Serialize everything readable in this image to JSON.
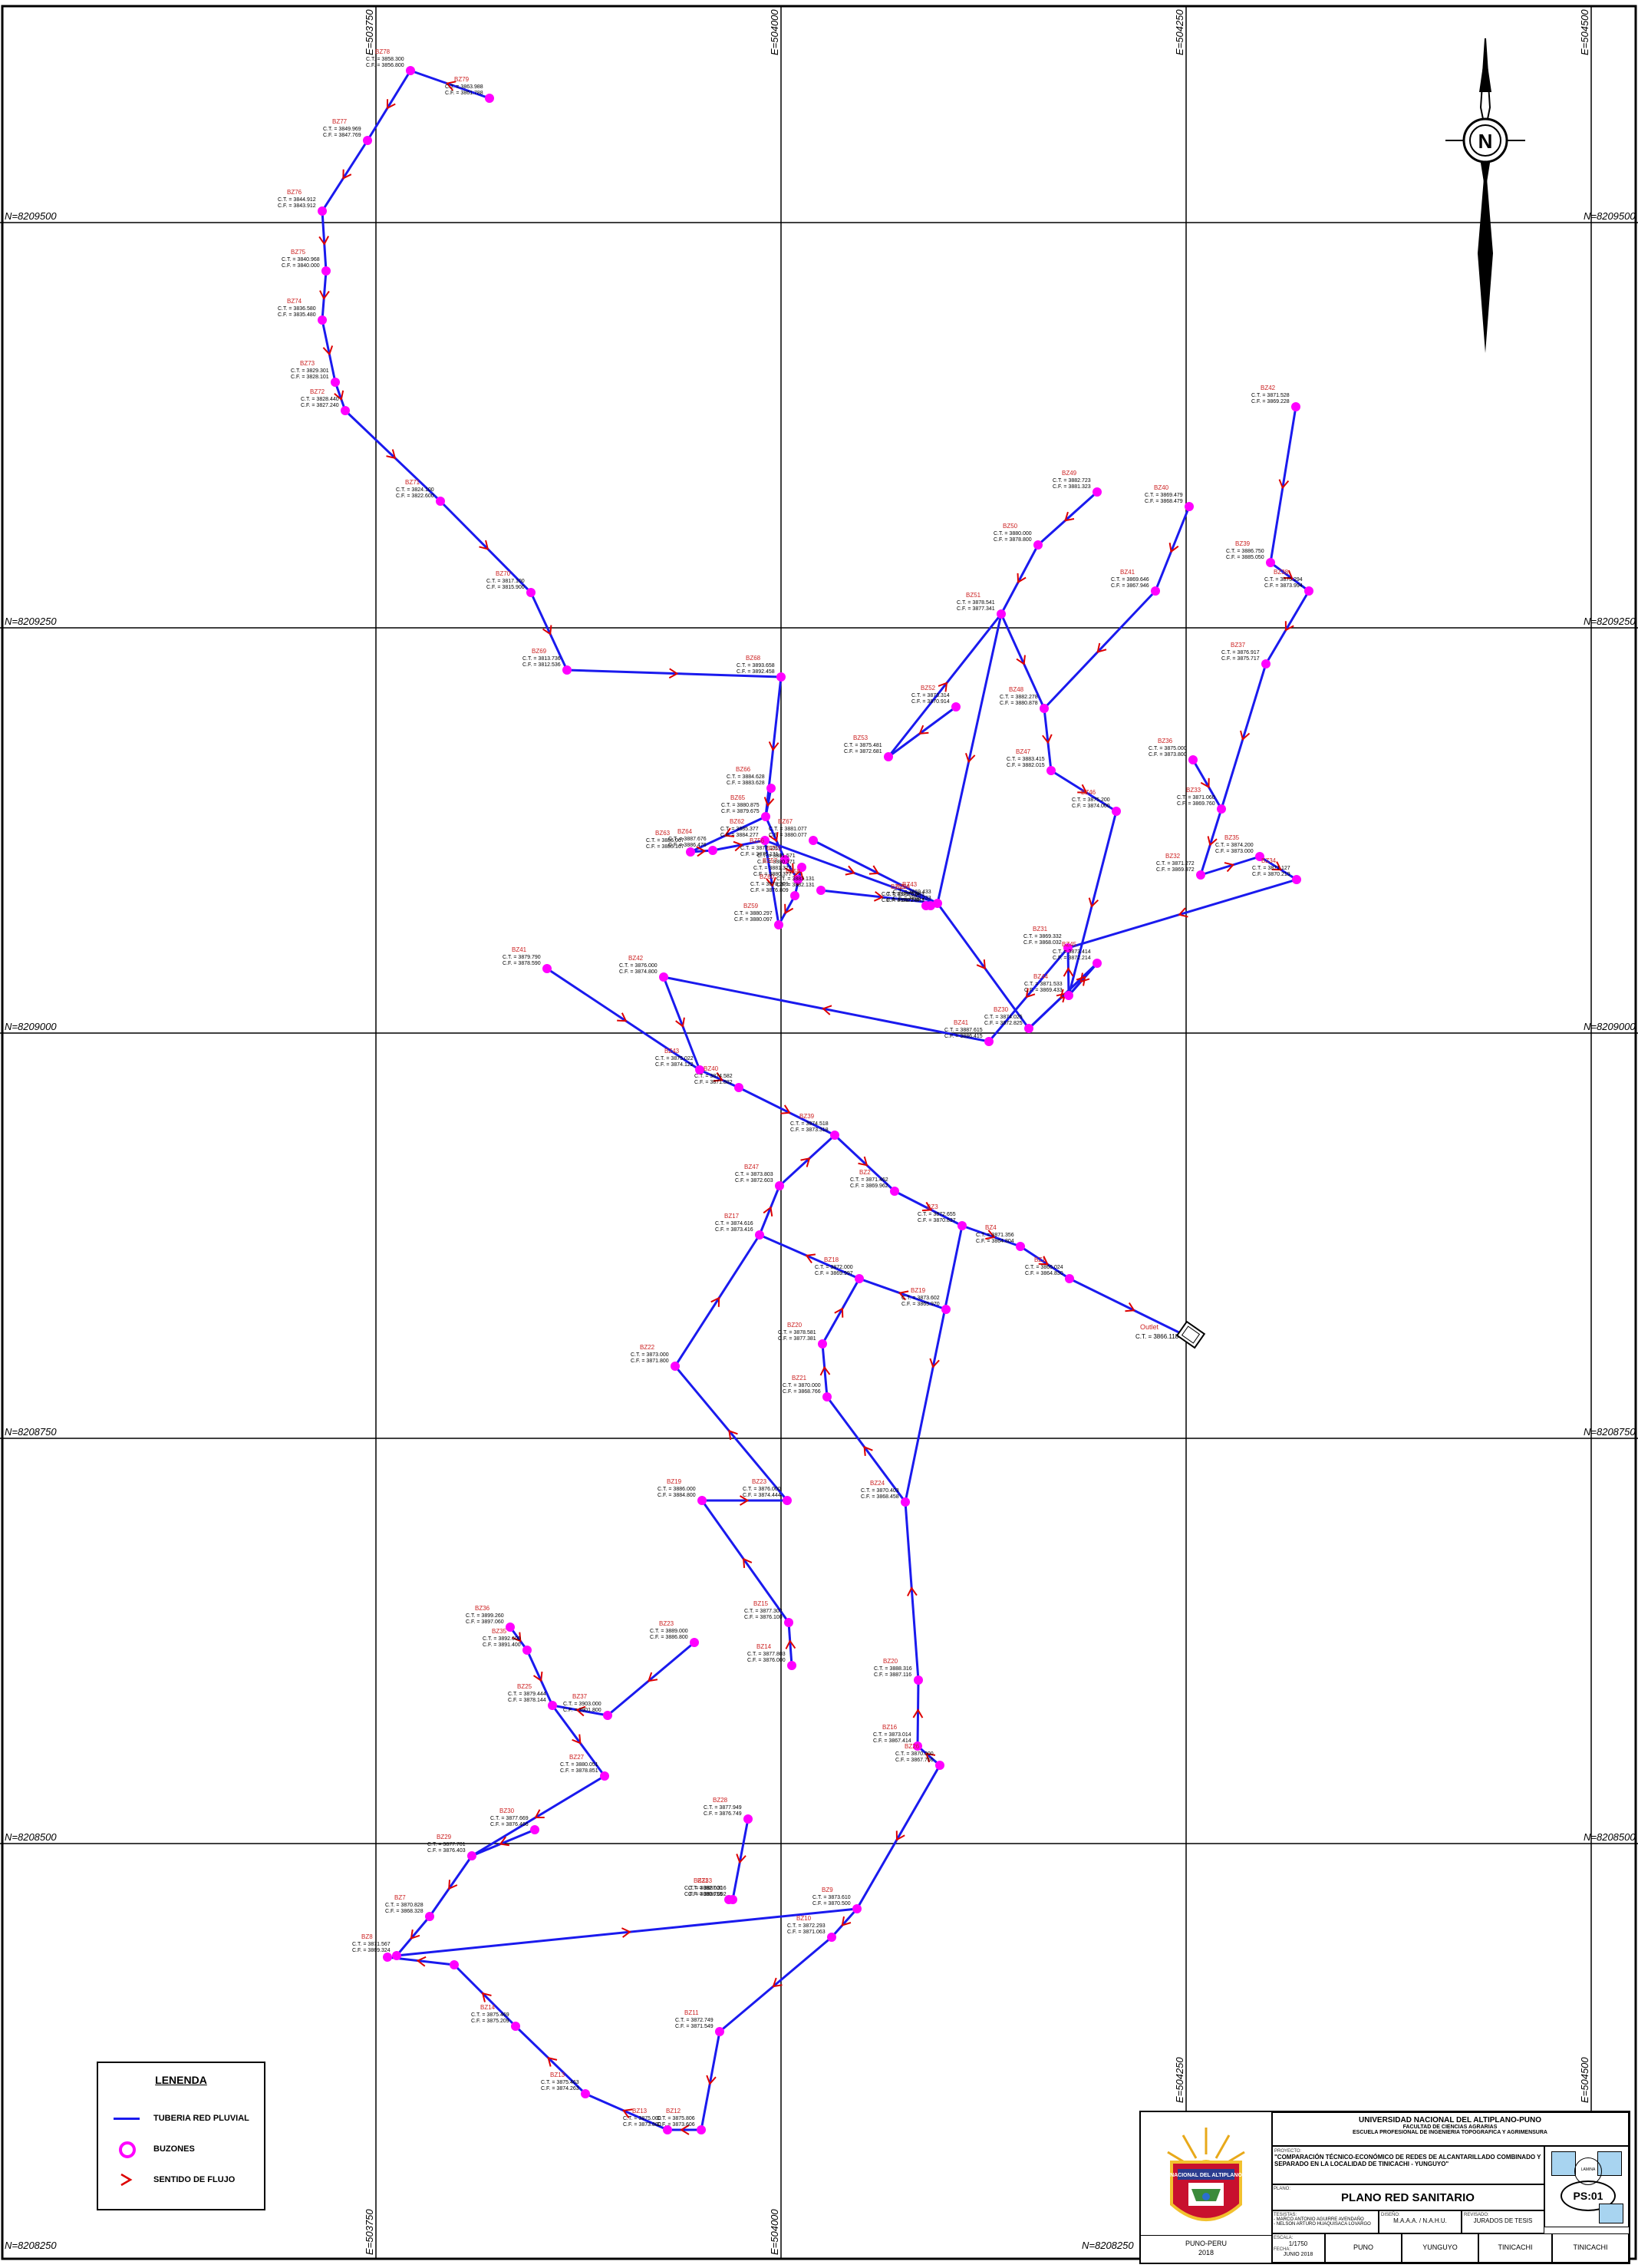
{
  "map": {
    "grid_labels": {
      "north": [
        "N=8209500",
        "N=8209250",
        "N=8209000",
        "N=8208750",
        "N=8208500",
        "N=8208250"
      ],
      "east": [
        "E=503750",
        "E=504000",
        "E=504250",
        "E=504500"
      ]
    },
    "colors": {
      "pipe": "#1a1aee",
      "node": "#ff00ff",
      "flow": "#dd0000",
      "label": "#cc2222",
      "grid": "#000000"
    },
    "outfall_label": "Outlet",
    "nodes": [
      {
        "id": "BZ78",
        "ct": "C.T. = 3858.300",
        "cf": "C.F. = 3856.800"
      },
      {
        "id": "BZ79",
        "ct": "C.T. = 3863.988",
        "cf": "C.F. = 3861.788"
      },
      {
        "id": "BZ77",
        "ct": "C.T. = 3849.969",
        "cf": "C.F. = 3847.769"
      },
      {
        "id": "BZ76",
        "ct": "C.T. = 3844.912",
        "cf": "C.F. = 3843.912"
      },
      {
        "id": "BZ75",
        "ct": "C.T. = 3840.968",
        "cf": "C.F. = 3840.000"
      },
      {
        "id": "BZ74",
        "ct": "C.T. = 3836.580",
        "cf": "C.F. = 3835.480"
      },
      {
        "id": "BZ73",
        "ct": "C.T. = 3829.301",
        "cf": "C.F. = 3828.101"
      },
      {
        "id": "BZ72",
        "ct": "C.T. = 3828.440",
        "cf": "C.F. = 3827.240"
      },
      {
        "id": "BZ71",
        "ct": "C.T. = 3824.100",
        "cf": "C.F. = 3822.600"
      },
      {
        "id": "BZ70",
        "ct": "C.T. = 3817.100",
        "cf": "C.F. = 3815.900"
      },
      {
        "id": "BZ69",
        "ct": "C.T. = 3813.736",
        "cf": "C.F. = 3812.536"
      },
      {
        "id": "BZ68",
        "ct": "C.T. = 3893.658",
        "cf": "C.F. = 3892.458"
      },
      {
        "id": "BZ66",
        "ct": "C.T. = 3884.628",
        "cf": "C.F. = 3883.628"
      },
      {
        "id": "BZ65",
        "ct": "C.T. = 3880.875",
        "cf": "C.F. = 3879.675"
      },
      {
        "id": "BZ67",
        "ct": "C.T. = 3881.077",
        "cf": "C.F. = 3880.077"
      },
      {
        "id": "BZ64",
        "ct": "C.T. = 3887.676",
        "cf": "C.F. = 3886.476"
      },
      {
        "id": "BZ63",
        "ct": "C.T. = 3886.067",
        "cf": "C.F. = 3885.167"
      },
      {
        "id": "BZ62",
        "ct": "C.T. = 3885.377",
        "cf": "C.F. = 3884.277"
      },
      {
        "id": "BZ61",
        "ct": "C.T. = 3881.571",
        "cf": "C.F. = 3880.371"
      },
      {
        "id": "BZ60",
        "ct": "C.T. = 3878.209",
        "cf": "C.F. = 3876.809"
      },
      {
        "id": "BZ59",
        "ct": "C.T. = 3880.297",
        "cf": "C.F. = 3880.097"
      },
      {
        "id": "BZ58",
        "ct": "C.T. = 3883.131",
        "cf": "C.F. = 3882.131"
      },
      {
        "id": "BZ57",
        "ct": "C.T. = 3881.377",
        "cf": "C.F. = 3880.377"
      },
      {
        "id": "BZ56",
        "ct": "C.T. = 3877.131",
        "cf": "C.F. = 3875.131"
      },
      {
        "id": "BZ55",
        "ct": "C.T. = 3879.034",
        "cf": "C.F. = 3878.244"
      },
      {
        "id": "BZ54",
        "ct": "C.T. = 3878.843",
        "cf": "C.F. = 3877.843"
      },
      {
        "id": "BZ53",
        "ct": "C.T. = 3875.481",
        "cf": "C.F. = 3872.681"
      },
      {
        "id": "BZ52",
        "ct": "C.T. = 3873.314",
        "cf": "C.F. = 3870.914"
      },
      {
        "id": "BZ51",
        "ct": "C.T. = 3878.541",
        "cf": "C.F. = 3877.341"
      },
      {
        "id": "BZ50",
        "ct": "C.T. = 3880.000",
        "cf": "C.F. = 3878.800"
      },
      {
        "id": "BZ49",
        "ct": "C.T. = 3882.723",
        "cf": "C.F. = 3881.323"
      },
      {
        "id": "BZ48",
        "ct": "C.T. = 3882.278",
        "cf": "C.F. = 3880.878"
      },
      {
        "id": "BZ47",
        "ct": "C.T. = 3883.415",
        "cf": "C.F. = 3882.015"
      },
      {
        "id": "BZ46",
        "ct": "C.T. = 3875.200",
        "cf": "C.F. = 3874.000"
      },
      {
        "id": "BZ45",
        "ct": "C.T. = 3873.414",
        "cf": "C.F. = 3872.214"
      },
      {
        "id": "BZ44",
        "ct": "C.T. = 3871.533",
        "cf": "C.F. = 3869.433"
      },
      {
        "id": "BZ43",
        "ct": "C.T. = 3869.433",
        "cf": "C.F. = 3868.233"
      },
      {
        "id": "BZ42",
        "ct": "C.T. = 3871.528",
        "cf": "C.F. = 3869.228"
      },
      {
        "id": "BZ41",
        "ct": "C.T. = 3869.646",
        "cf": "C.F. = 3867.946"
      },
      {
        "id": "BZ40",
        "ct": "C.T. = 3869.479",
        "cf": "C.F. = 3868.479"
      },
      {
        "id": "BZ39",
        "ct": "C.T. = 3886.750",
        "cf": "C.F. = 3885.050"
      },
      {
        "id": "BZ38",
        "ct": "C.T. = 3875.294",
        "cf": "C.F. = 3873.994"
      },
      {
        "id": "BZ37",
        "ct": "C.T. = 3876.917",
        "cf": "C.F. = 3875.717"
      },
      {
        "id": "BZ36",
        "ct": "C.T. = 3875.000",
        "cf": "C.F. = 3873.800"
      },
      {
        "id": "BZ35",
        "ct": "C.T. = 3874.200",
        "cf": "C.F. = 3873.000"
      },
      {
        "id": "BZ34",
        "ct": "C.T. = 3871.127",
        "cf": "C.F. = 3870.219"
      },
      {
        "id": "BZ33",
        "ct": "C.T. = 3871.060",
        "cf": "C.F. = 3869.760"
      },
      {
        "id": "BZ32",
        "ct": "C.T. = 3871.272",
        "cf": "C.F. = 3869.372"
      },
      {
        "id": "BZ31",
        "ct": "C.T. = 3869.332",
        "cf": "C.F. = 3868.032"
      },
      {
        "id": "BZ30",
        "ct": "C.T. = 3874.025",
        "cf": "C.F. = 3872.825"
      },
      {
        "id": "BZ41b",
        "ct": "C.T. = 3887.615",
        "cf": "C.F. = 3886.415"
      },
      {
        "id": "BZ41c",
        "ct": "C.T. = 3879.790",
        "cf": "C.F. = 3878.590"
      },
      {
        "id": "BZ42b",
        "ct": "C.T. = 3876.000",
        "cf": "C.F. = 3874.800"
      },
      {
        "id": "BZ43b",
        "ct": "C.T. = 3875.022",
        "cf": "C.F. = 3874.122"
      },
      {
        "id": "BZ40b",
        "ct": "C.T. = 3874.582",
        "cf": "C.F. = 3871.882"
      },
      {
        "id": "BZ39b",
        "ct": "C.T. = 3874.518",
        "cf": "C.F. = 3873.318"
      },
      {
        "id": "BZ2",
        "ct": "C.T. = 3871.462",
        "cf": "C.F. = 3869.962"
      },
      {
        "id": "BZ3",
        "ct": "C.T. = 3872.655",
        "cf": "C.F. = 3870.837"
      },
      {
        "id": "BZ4",
        "ct": "C.T. = 3871.356",
        "cf": "C.F. = 3864.804"
      },
      {
        "id": "BZ1",
        "ct": "C.T. = 3866.024",
        "cf": "C.F. = 3864.830"
      },
      {
        "id": "OUTLET",
        "ct": "C.T. = 3866.118",
        "cf": ""
      },
      {
        "id": "BZ47b",
        "ct": "C.T. = 3873.803",
        "cf": "C.F. = 3872.603"
      },
      {
        "id": "BZ17",
        "ct": "C.T. = 3874.616",
        "cf": "C.F. = 3873.416"
      },
      {
        "id": "BZ18",
        "ct": "C.T. = 3872.000",
        "cf": "C.F. = 3869.997"
      },
      {
        "id": "BZ19",
        "ct": "C.T. = 3873.602",
        "cf": "C.F. = 3865.970"
      },
      {
        "id": "BZ20",
        "ct": "C.T. = 3878.581",
        "cf": "C.F. = 3877.381"
      },
      {
        "id": "BZ21",
        "ct": "C.T. = 3870.000",
        "cf": "C.F. = 3868.766"
      },
      {
        "id": "BZ22",
        "ct": "C.T. = 3873.000",
        "cf": "C.F. = 3871.800"
      },
      {
        "id": "BZ23",
        "ct": "C.T. = 3876.000",
        "cf": "C.F. = 3874.444"
      },
      {
        "id": "BZ24",
        "ct": "C.T. = 3870.403",
        "cf": "C.F. = 3868.458"
      },
      {
        "id": "BZ19b",
        "ct": "C.T. = 3886.000",
        "cf": "C.F. = 3884.800"
      },
      {
        "id": "BZ15",
        "ct": "C.T. = 3877.303",
        "cf": "C.F. = 3876.100"
      },
      {
        "id": "BZ14",
        "ct": "C.T. = 3877.803",
        "cf": "C.F. = 3876.000"
      },
      {
        "id": "BZ20b",
        "ct": "C.T. = 3888.316",
        "cf": "C.F. = 3887.116"
      },
      {
        "id": "BZ16",
        "ct": "C.T. = 3873.014",
        "cf": "C.F. = 3867.414"
      },
      {
        "id": "BZ26",
        "ct": "C.T. = 3870.000",
        "cf": "C.F. = 3867.750"
      },
      {
        "id": "BZ23b",
        "ct": "C.T. = 3889.000",
        "cf": "C.F. = 3886.800"
      },
      {
        "id": "BZ37b",
        "ct": "C.T. = 3903.000",
        "cf": "C.F. = 3901.800"
      },
      {
        "id": "BZ36b",
        "ct": "C.T. = 3899.260",
        "cf": "C.F. = 3897.060"
      },
      {
        "id": "BZ35b",
        "ct": "C.T. = 3892.600",
        "cf": "C.F. = 3891.400"
      },
      {
        "id": "BZ25",
        "ct": "C.T. = 3879.444",
        "cf": "C.F. = 3878.144"
      },
      {
        "id": "BZ27",
        "ct": "C.T. = 3880.051",
        "cf": "C.F. = 3878.851"
      },
      {
        "id": "BZ28",
        "ct": "C.T. = 3877.949",
        "cf": "C.F. = 3876.749"
      },
      {
        "id": "BZ33b",
        "ct": "C.T. = 3887.316",
        "cf": "C.F. = 3886.092"
      },
      {
        "id": "BZ31b",
        "ct": "C.T. = 3882.000",
        "cf": "C.F. = 3880.756"
      },
      {
        "id": "BZ30b",
        "ct": "C.T. = 3877.669",
        "cf": "C.F. = 3876.466"
      },
      {
        "id": "BZ29",
        "ct": "C.T. = 3877.701",
        "cf": "C.F. = 3876.403"
      },
      {
        "id": "BZ7",
        "ct": "C.T. = 3870.828",
        "cf": "C.F. = 3868.328"
      },
      {
        "id": "BZ8",
        "ct": "C.T. = 3871.567",
        "cf": "C.F. = 3869.324"
      },
      {
        "id": "BZ9",
        "ct": "C.T. = 3873.610",
        "cf": "C.F. = 3870.500"
      },
      {
        "id": "BZ10",
        "ct": "C.T. = 3872.293",
        "cf": "C.F. = 3871.063"
      },
      {
        "id": "BZ11",
        "ct": "C.T. = 3872.749",
        "cf": "C.F. = 3871.549"
      },
      {
        "id": "BZ12",
        "ct": "C.T. = 3875.806",
        "cf": "C.F. = 3873.606"
      },
      {
        "id": "BZ13",
        "ct": "C.T. = 3875.000",
        "cf": "C.F. = 3873.800"
      },
      {
        "id": "BZ13b",
        "ct": "C.T. = 3875.463",
        "cf": "C.F. = 3874.263"
      },
      {
        "id": "BZ14b",
        "ct": "C.T. = 3875.469",
        "cf": "C.F. = 3875.209"
      }
    ]
  },
  "legend": {
    "title": "LENENDA",
    "items": [
      {
        "label": "TUBERIA RED PLUVIAL",
        "kind": "line",
        "color": "#1a1aee"
      },
      {
        "label": "BUZONES",
        "kind": "circle",
        "color": "#ff00ff"
      },
      {
        "label": "SENTIDO DE FLUJO",
        "kind": "arrow",
        "color": "#dd0000"
      }
    ]
  },
  "titleblock": {
    "logo_text": "NACIONAL DEL ALTIPLANO",
    "place": "PUNO-PERU",
    "year": "2018",
    "university": "UNIVERSIDAD NACIONAL DEL ALTIPLANO-PUNO",
    "faculty": "FACULTAD DE CIENCIAS AGRARIAS",
    "school": "ESCUELA PROFESIONAL DE INGENIERIA TOPOGRAFICA Y AGRIMENSURA",
    "proyecto_label": "PROYECTO:",
    "project_title": "\"COMPARACIÓN TÉCNICO-ECONÓMICO DE REDES DE ALCANTARILLADO COMBINADO Y SEPARADO EN LA LOCALIDAD DE TINICACHI - YUNGUYO\"",
    "plano_label": "PLANO:",
    "plan_title": "PLANO RED SANITARIO",
    "lamina_label": "LAMINA",
    "sheet": "PS:01",
    "tesistas_label": "TESISTAS:",
    "tesista1": "- MARCO ANTONIO AGUIRRE AVENDAÑO",
    "tesista2": "- NELSON ARTURO HUAQUISACA LOVARGO",
    "disenio_label": "DISEÑO:",
    "disenio": "M.A.A.A. / N.A.H.U.",
    "revisado_label": "REVISADO:",
    "revisado": "JURADOS DE TESIS",
    "escala_label": "ESCALA:",
    "escala": "1/1750",
    "fecha_label": "FECHA:",
    "fecha": "JUNIO 2018",
    "region": "PUNO",
    "provincia": "YUNGUYO",
    "distrito": "TINICACHI",
    "localidad": "TINICACHI"
  }
}
